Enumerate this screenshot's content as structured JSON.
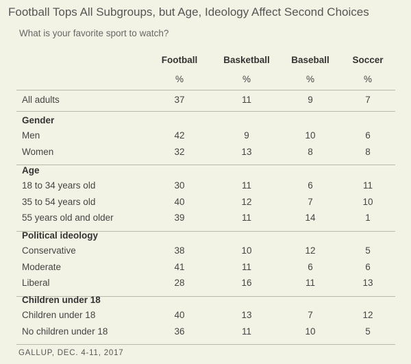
{
  "title": "Football Tops All Subgroups, but Age, Ideology Affect Second Choices",
  "subtitle": "What is your favorite sport to watch?",
  "footer": "GALLUP, DEC. 4-11, 2017",
  "chart_data": {
    "type": "table",
    "columns": [
      "Football",
      "Basketball",
      "Baseball",
      "Soccer"
    ],
    "unit_row": [
      "%",
      "%",
      "%",
      "%"
    ],
    "top_row": {
      "label": "All adults",
      "values": [
        "37",
        "11",
        "9",
        "7"
      ]
    },
    "sections": [
      {
        "title": "Gender",
        "rows": [
          {
            "label": "Men",
            "values": [
              "42",
              "9",
              "10",
              "6"
            ]
          },
          {
            "label": "Women",
            "values": [
              "32",
              "13",
              "8",
              "8"
            ]
          }
        ]
      },
      {
        "title": "Age",
        "rows": [
          {
            "label": "18 to 34 years old",
            "values": [
              "30",
              "11",
              "6",
              "11"
            ]
          },
          {
            "label": "35 to 54 years old",
            "values": [
              "40",
              "12",
              "7",
              "10"
            ]
          },
          {
            "label": "55 years old and older",
            "values": [
              "39",
              "11",
              "14",
              "1"
            ]
          }
        ]
      },
      {
        "title": "Political ideology",
        "rows": [
          {
            "label": "Conservative",
            "values": [
              "38",
              "10",
              "12",
              "5"
            ]
          },
          {
            "label": "Moderate",
            "values": [
              "41",
              "11",
              "6",
              "6"
            ]
          },
          {
            "label": "Liberal",
            "values": [
              "28",
              "16",
              "11",
              "13"
            ]
          }
        ]
      },
      {
        "title": "Children under 18",
        "rows": [
          {
            "label": "Children under 18",
            "values": [
              "40",
              "13",
              "7",
              "12"
            ]
          },
          {
            "label": "No children under 18",
            "values": [
              "36",
              "11",
              "10",
              "5"
            ]
          }
        ]
      }
    ]
  }
}
